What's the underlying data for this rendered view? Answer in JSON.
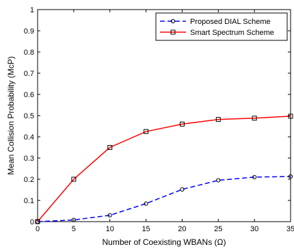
{
  "chart_data": {
    "type": "line",
    "xlabel": "Number of Coexisting WBANs (Ω)",
    "ylabel": "Mean Collision Probability (McP)",
    "xlim": [
      0,
      35
    ],
    "ylim": [
      0,
      1
    ],
    "xticks": [
      0,
      5,
      10,
      15,
      20,
      25,
      30,
      35
    ],
    "yticks": [
      0,
      0.1,
      0.2,
      0.3,
      0.4,
      0.5,
      0.6,
      0.7,
      0.8,
      0.9,
      1
    ],
    "xtick_labels": [
      "0",
      "5",
      "10",
      "15",
      "20",
      "25",
      "30",
      "35"
    ],
    "ytick_labels": [
      "0",
      "0.1",
      "0.2",
      "0.3",
      "0.4",
      "0.5",
      "0.6",
      "0.7",
      "0.8",
      "0.9",
      "1"
    ],
    "grid": false,
    "legend_position": "top-right",
    "series": [
      {
        "name": "Proposed DIAL Scheme",
        "color": "#0000ff",
        "line_style": "dashed",
        "marker": "circle",
        "x": [
          0,
          5,
          10,
          15,
          20,
          25,
          30,
          35
        ],
        "y": [
          0,
          0.008,
          0.03,
          0.085,
          0.152,
          0.195,
          0.21,
          0.213
        ]
      },
      {
        "name": "Smart Spectrum Scheme",
        "color": "#ff0000",
        "line_style": "solid",
        "marker": "square",
        "x": [
          0,
          5,
          10,
          15,
          20,
          25,
          30,
          35
        ],
        "y": [
          0,
          0.2,
          0.35,
          0.425,
          0.46,
          0.482,
          0.488,
          0.497
        ]
      }
    ]
  }
}
